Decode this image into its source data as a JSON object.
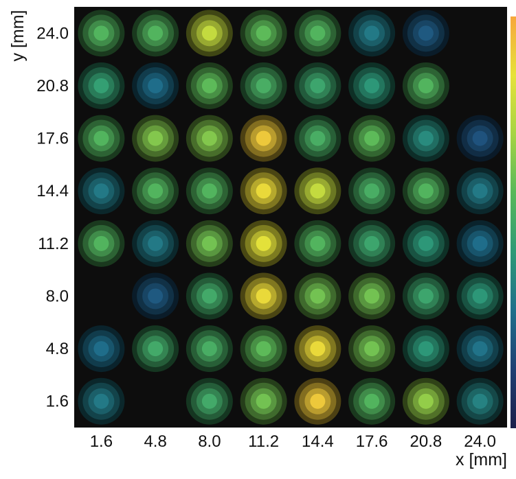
{
  "chart_data": {
    "type": "heatmap",
    "title": "",
    "xlabel": "x [mm]",
    "ylabel": "y [mm]",
    "x": [
      1.6,
      4.8,
      8.0,
      11.2,
      14.4,
      17.6,
      20.8,
      24.0
    ],
    "y": [
      24.0,
      20.8,
      17.6,
      14.4,
      11.2,
      8.0,
      4.8,
      1.6
    ],
    "xticklabels": [
      "1.6",
      "4.8",
      "8.0",
      "11.2",
      "14.4",
      "17.6",
      "20.8",
      "24.0"
    ],
    "yticklabels": [
      "24.0",
      "20.8",
      "17.6",
      "14.4",
      "11.2",
      "8.0",
      "4.8",
      "1.6"
    ],
    "xlim": [
      0,
      25.6
    ],
    "ylim": [
      0,
      25.6
    ],
    "background_color": "#0d0d0d",
    "marker": "concentric-circles",
    "colorbar": {
      "visible": true,
      "colormap": "viridis-like",
      "tick_labels_visible": false,
      "colors": [
        "#1b1f4a",
        "#1f3f73",
        "#1f6f8b",
        "#2e9a77",
        "#58b85a",
        "#a6d443",
        "#e6e23a",
        "#f7a73c"
      ]
    },
    "values_normalized_rows_top_to_bottom": [
      [
        0.55,
        0.55,
        0.78,
        0.58,
        0.55,
        0.32,
        0.22,
        null
      ],
      [
        0.45,
        0.28,
        0.58,
        0.52,
        0.48,
        0.42,
        0.55,
        null
      ],
      [
        0.55,
        0.65,
        0.65,
        0.92,
        0.52,
        0.58,
        0.38,
        0.2
      ],
      [
        0.32,
        0.55,
        0.55,
        0.88,
        0.78,
        0.52,
        0.55,
        0.32
      ],
      [
        0.55,
        0.32,
        0.62,
        0.85,
        0.55,
        0.48,
        0.42,
        0.28
      ],
      [
        null,
        0.22,
        0.5,
        0.88,
        0.62,
        0.62,
        0.48,
        0.42
      ],
      [
        0.28,
        0.5,
        0.52,
        0.58,
        0.88,
        0.62,
        0.42,
        0.3
      ],
      [
        0.32,
        null,
        0.5,
        0.62,
        0.92,
        0.55,
        0.68,
        0.35
      ]
    ]
  }
}
